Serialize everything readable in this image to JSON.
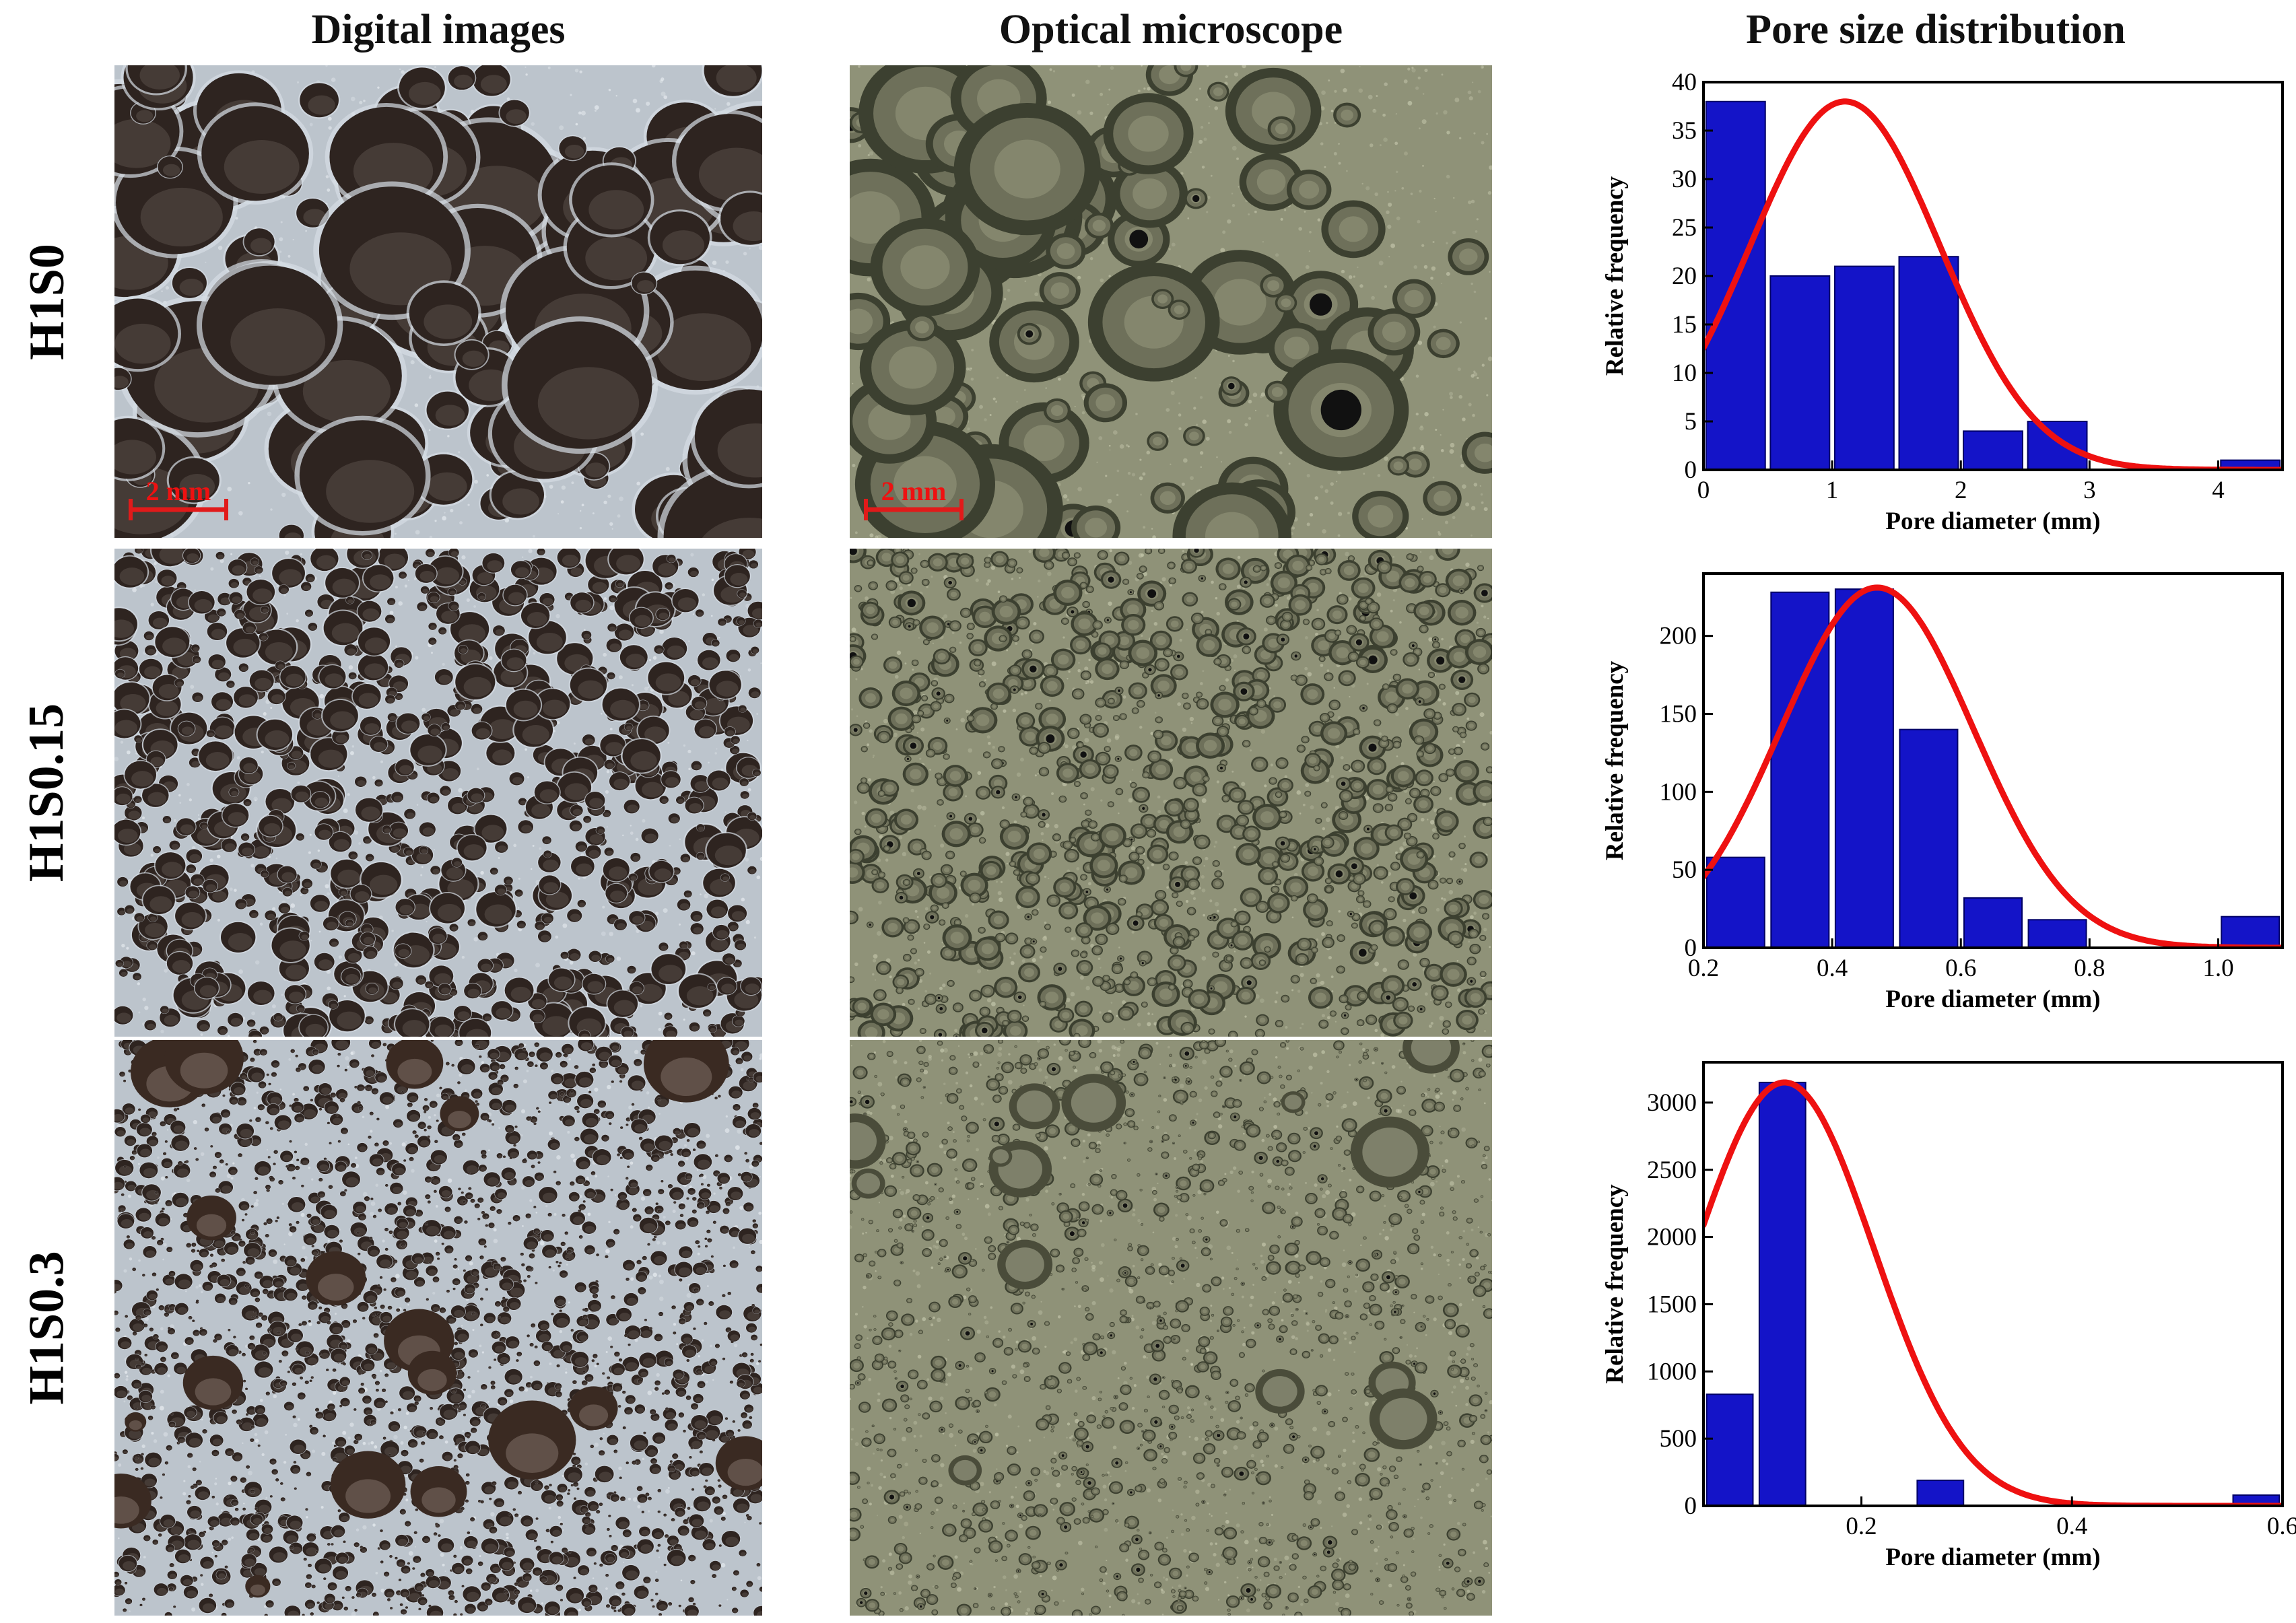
{
  "headers": {
    "digital": "Digital images",
    "optical": "Optical microscope",
    "distribution": "Pore size distribution"
  },
  "rows": [
    {
      "label": "H1S0"
    },
    {
      "label": "H1S0.15"
    },
    {
      "label": "H1S0.3"
    }
  ],
  "scale_bar": {
    "label": "2 mm",
    "color": "#e11a1a"
  },
  "colors": {
    "bar": "#1414c8",
    "bar_edge": "#000066",
    "fit": "#ee1111"
  },
  "chart_data": [
    {
      "type": "bar",
      "sample": "H1S0",
      "xlabel": "Pore diameter (mm)",
      "ylabel": "Relative frequency",
      "xlim": [
        0,
        4.5
      ],
      "ylim": [
        0,
        40
      ],
      "xticks": [
        0,
        1,
        2,
        3,
        4
      ],
      "xtick_labels": [
        "0",
        "1",
        "2",
        "3",
        "4"
      ],
      "yticks": [
        0,
        5,
        10,
        15,
        20,
        25,
        30,
        35,
        40
      ],
      "bin_width": 0.46,
      "bins": [
        {
          "x": 0.25,
          "value": 38
        },
        {
          "x": 0.75,
          "value": 20
        },
        {
          "x": 1.25,
          "value": 21
        },
        {
          "x": 1.75,
          "value": 22
        },
        {
          "x": 2.25,
          "value": 4
        },
        {
          "x": 2.75,
          "value": 5
        },
        {
          "x": 4.25,
          "value": 1
        }
      ],
      "fit": {
        "type": "normal",
        "mean": 1.1,
        "sd": 0.74,
        "peak": 38
      }
    },
    {
      "type": "bar",
      "sample": "H1S0.15",
      "xlabel": "Pore diameter (mm)",
      "ylabel": "Relative frequency",
      "xlim": [
        0.2,
        1.1
      ],
      "ylim": [
        0,
        240
      ],
      "xticks": [
        0.2,
        0.4,
        0.6,
        0.8,
        1.0
      ],
      "xtick_labels": [
        "0.2",
        "0.4",
        "0.6",
        "0.8",
        "1.0"
      ],
      "yticks": [
        0,
        50,
        100,
        150,
        200
      ],
      "bin_width": 0.09,
      "bins": [
        {
          "x": 0.25,
          "value": 58
        },
        {
          "x": 0.35,
          "value": 228
        },
        {
          "x": 0.45,
          "value": 230
        },
        {
          "x": 0.55,
          "value": 140
        },
        {
          "x": 0.65,
          "value": 32
        },
        {
          "x": 0.75,
          "value": 18
        },
        {
          "x": 1.05,
          "value": 20
        }
      ],
      "fit": {
        "type": "normal",
        "mean": 0.47,
        "sd": 0.15,
        "peak": 231
      }
    },
    {
      "type": "bar",
      "sample": "H1S0.3",
      "xlabel": "Pore diameter (mm)",
      "ylabel": "Relative frequency",
      "xlim": [
        0.05,
        0.6
      ],
      "ylim": [
        0,
        3300
      ],
      "xticks": [
        0.2,
        0.4,
        0.6
      ],
      "xtick_labels": [
        "0.2",
        "0.4",
        "0.6"
      ],
      "yticks": [
        0,
        500,
        1000,
        1500,
        2000,
        2500,
        3000
      ],
      "bin_width": 0.044,
      "bins": [
        {
          "x": 0.075,
          "value": 830
        },
        {
          "x": 0.125,
          "value": 3150
        },
        {
          "x": 0.275,
          "value": 190
        },
        {
          "x": 0.575,
          "value": 80
        }
      ],
      "fit": {
        "type": "normal",
        "mean": 0.127,
        "sd": 0.085,
        "peak": 3150
      }
    }
  ]
}
